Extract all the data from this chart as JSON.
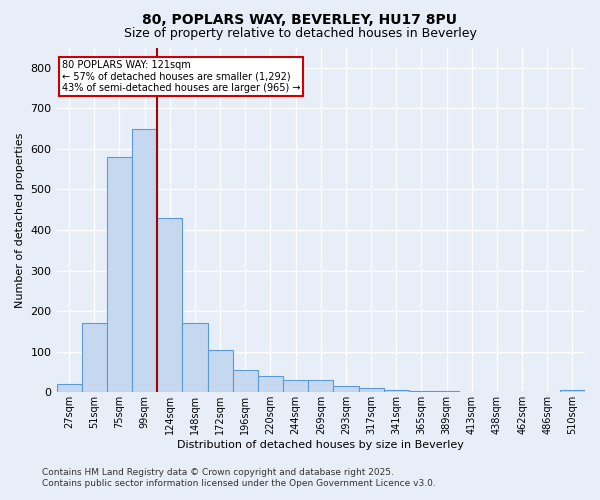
{
  "title1": "80, POPLARS WAY, BEVERLEY, HU17 8PU",
  "title2": "Size of property relative to detached houses in Beverley",
  "xlabel": "Distribution of detached houses by size in Beverley",
  "ylabel": "Number of detached properties",
  "categories": [
    "27sqm",
    "51sqm",
    "75sqm",
    "99sqm",
    "124sqm",
    "148sqm",
    "172sqm",
    "196sqm",
    "220sqm",
    "244sqm",
    "269sqm",
    "293sqm",
    "317sqm",
    "341sqm",
    "365sqm",
    "389sqm",
    "413sqm",
    "438sqm",
    "462sqm",
    "486sqm",
    "510sqm"
  ],
  "values": [
    20,
    170,
    580,
    650,
    430,
    170,
    105,
    55,
    40,
    30,
    30,
    15,
    10,
    5,
    3,
    2,
    1,
    0,
    0,
    0,
    5
  ],
  "bar_color": "#c5d8f0",
  "bar_edge_color": "#5b9bd5",
  "vline_color": "#aa0000",
  "annotation_text": "80 POPLARS WAY: 121sqm\n← 57% of detached houses are smaller (1,292)\n43% of semi-detached houses are larger (965) →",
  "annotation_box_color": "#cc0000",
  "ylim": [
    0,
    850
  ],
  "yticks": [
    0,
    100,
    200,
    300,
    400,
    500,
    600,
    700,
    800
  ],
  "background_color": "#e8eef8",
  "grid_color": "#ffffff",
  "footer1": "Contains HM Land Registry data © Crown copyright and database right 2025.",
  "footer2": "Contains public sector information licensed under the Open Government Licence v3.0."
}
